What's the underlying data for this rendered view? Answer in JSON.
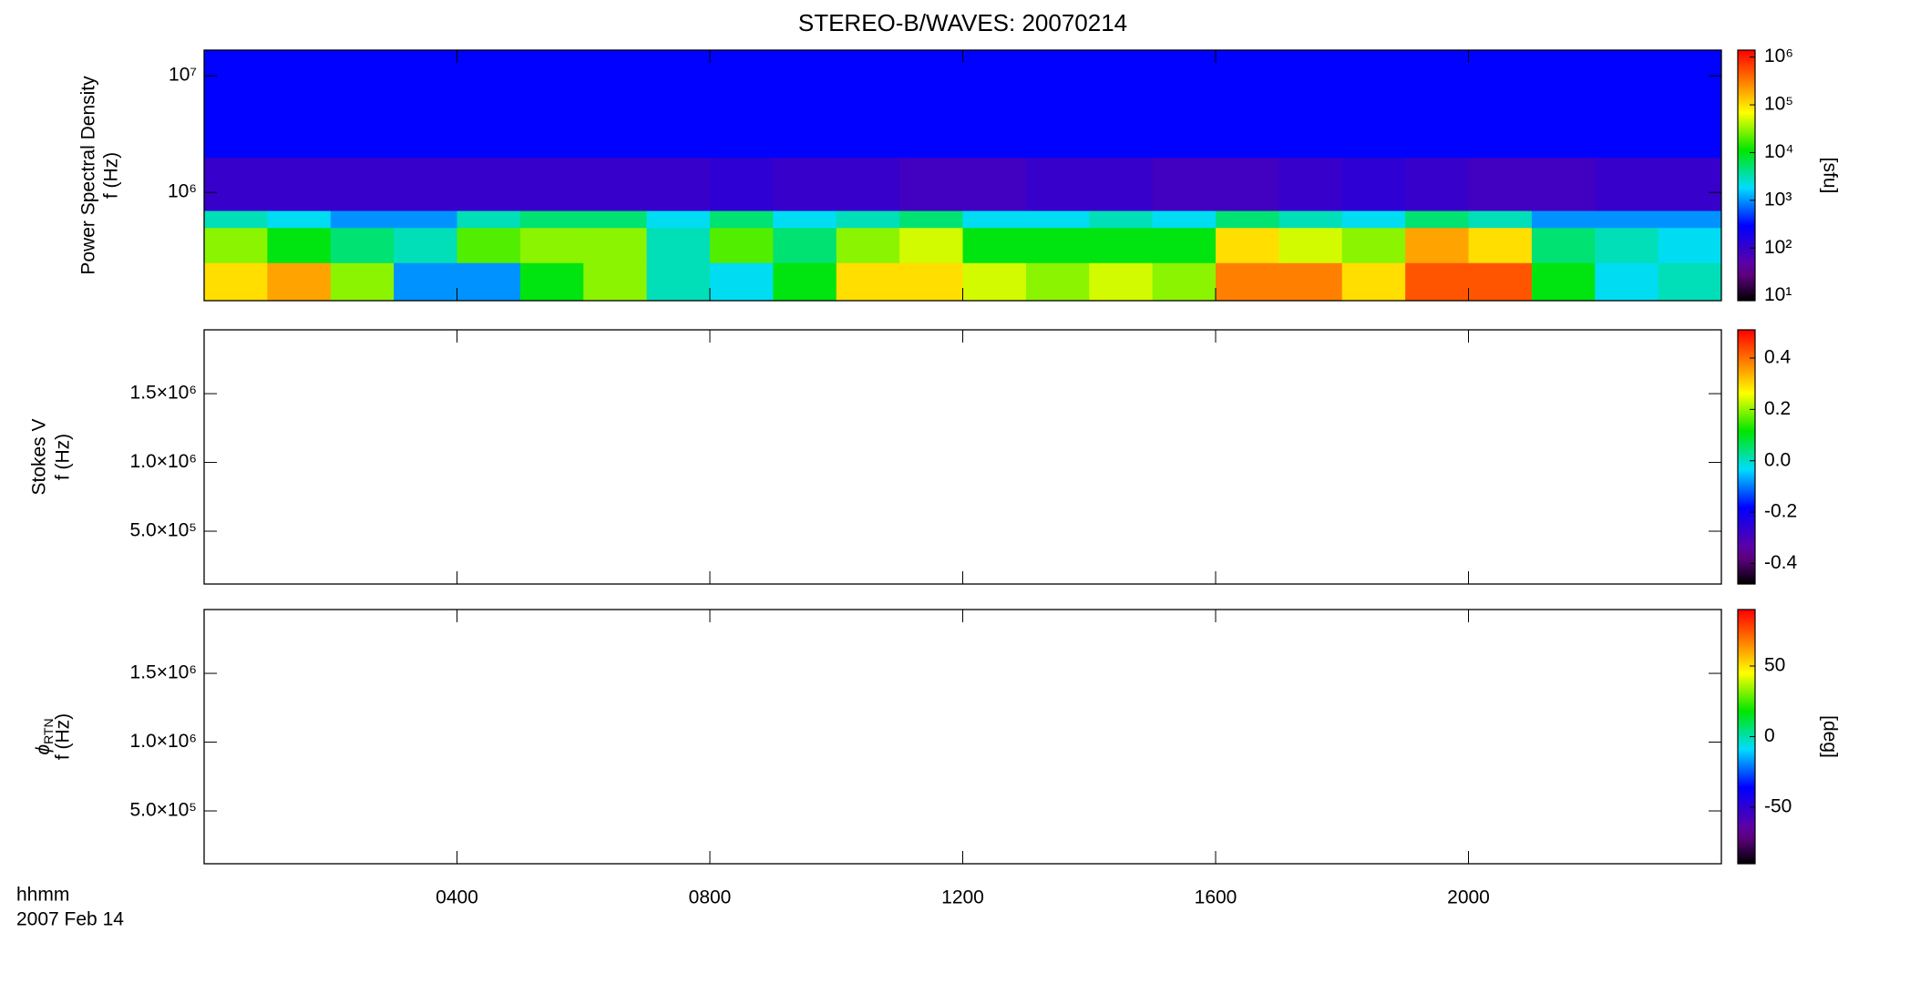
{
  "chart_data": [
    {
      "type": "heatmap",
      "title": "STEREO-B/WAVES: 20070214",
      "ylabel": "Power Spectral Density",
      "ylabel2": "f (Hz)",
      "xlim": [
        0,
        24
      ],
      "ylim": [
        118000,
        16600000
      ],
      "log_y": true,
      "yticks": [
        {
          "value": 1000000,
          "label": "10⁶"
        },
        {
          "value": 10000000,
          "label": "10⁷"
        }
      ],
      "x_edges": [
        0,
        1,
        2,
        3,
        4,
        5,
        6,
        7,
        8,
        9,
        10,
        11,
        12,
        13,
        14,
        15,
        16,
        17,
        18,
        19,
        20,
        21,
        22,
        23,
        24
      ],
      "y_edges": [
        118000,
        250000,
        500000,
        700000,
        2000000,
        16600000
      ],
      "values": [
        [
          100000,
          200000,
          30000,
          1000,
          1000,
          10000,
          30000,
          3000,
          2000,
          10000,
          100000,
          100000,
          50000,
          30000,
          50000,
          30000,
          300000,
          300000,
          100000,
          500000,
          500000,
          10000,
          2000,
          3000
        ],
        [
          30000,
          10000,
          5000,
          3000,
          20000,
          30000,
          30000,
          3000,
          20000,
          5000,
          30000,
          50000,
          10000,
          10000,
          10000,
          10000,
          100000,
          50000,
          30000,
          200000,
          100000,
          5000,
          3000,
          2000
        ],
        [
          3000,
          2000,
          1000,
          1000,
          3000,
          5000,
          5000,
          2000,
          5000,
          2000,
          3000,
          5000,
          2000,
          2000,
          3000,
          2000,
          5000,
          3000,
          2000,
          5000,
          3000,
          1000,
          1000,
          1000
        ],
        [
          100,
          100,
          100,
          100,
          100,
          100,
          100,
          100,
          120,
          100,
          100,
          80,
          80,
          100,
          100,
          80,
          80,
          100,
          120,
          100,
          80,
          80,
          100,
          100
        ],
        [
          300,
          300,
          300,
          300,
          300,
          300,
          300,
          300,
          300,
          300,
          300,
          300,
          300,
          300,
          300,
          300,
          300,
          300,
          300,
          300,
          300,
          300,
          300,
          300
        ]
      ],
      "colormap": "rainbow",
      "clim": [
        7.9,
        1400000
      ],
      "clog": true,
      "cticks": [
        {
          "value": 10,
          "label": "10¹"
        },
        {
          "value": 100,
          "label": "10²"
        },
        {
          "value": 1000,
          "label": "10³"
        },
        {
          "value": 10000,
          "label": "10⁴"
        },
        {
          "value": 100000,
          "label": "10⁵"
        },
        {
          "value": 1000000,
          "label": "10⁶"
        }
      ],
      "clabel": "[sfu]"
    },
    {
      "type": "heatmap",
      "ylabel": "Stokes V",
      "ylabel2": "f (Hz)",
      "xlim": [
        0,
        24
      ],
      "ylim": [
        116000,
        1964000
      ],
      "yticks": [
        {
          "value": 500000,
          "label": "5.0×10⁵"
        },
        {
          "value": 1000000,
          "label": "1.0×10⁶"
        },
        {
          "value": 1500000,
          "label": "1.5×10⁶"
        }
      ],
      "colormap": "rainbow",
      "clim": [
        -0.48,
        0.51
      ],
      "cticks": [
        -0.4,
        -0.2,
        {
          "value": 0,
          "label": "0.0"
        },
        0.2,
        0.4
      ]
    },
    {
      "type": "heatmap",
      "ylabel_symbol": "ϕ",
      "ylabel_subscript": "RTN",
      "ylabel2": "f (Hz)",
      "xlim": [
        0,
        24
      ],
      "ylim": [
        116000,
        1964000
      ],
      "yticks": [
        {
          "value": 500000,
          "label": "5.0×10⁵"
        },
        {
          "value": 1000000,
          "label": "1.0×10⁶"
        },
        {
          "value": 1500000,
          "label": "1.5×10⁶"
        }
      ],
      "xticks": [
        {
          "value": 4,
          "label": "0400"
        },
        {
          "value": 8,
          "label": "0800"
        },
        {
          "value": 12,
          "label": "1200"
        },
        {
          "value": 16,
          "label": "1600"
        },
        {
          "value": 20,
          "label": "2000"
        }
      ],
      "xlabel": "hhmm",
      "date_label": "2007 Feb 14",
      "colormap": "rainbow",
      "clim": [
        -90,
        90
      ],
      "cticks": [
        -50,
        0,
        50
      ],
      "clabel": "[deg]"
    }
  ]
}
